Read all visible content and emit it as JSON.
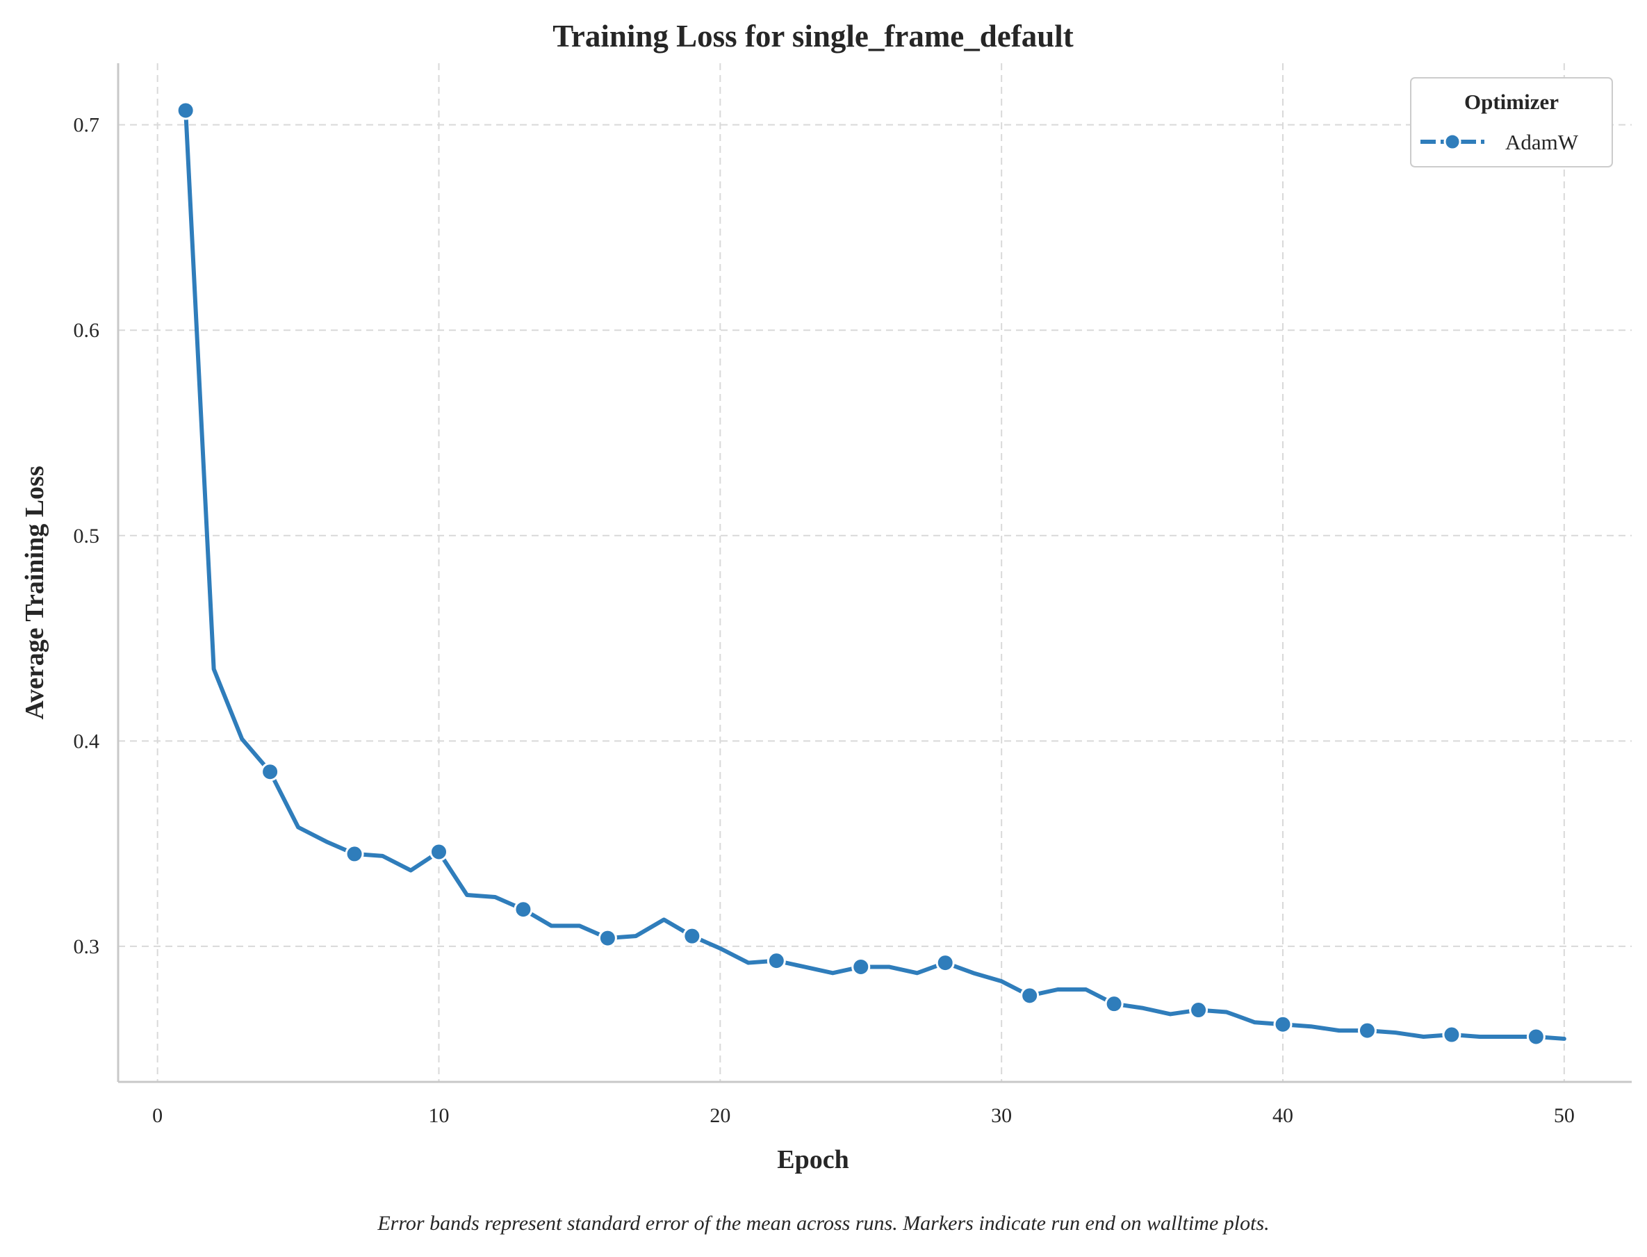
{
  "chart_data": {
    "type": "line",
    "title": "Training Loss for single_frame_default",
    "xlabel": "Epoch",
    "ylabel": "Average Training Loss",
    "caption": "Error bands represent standard error of the mean across runs. Markers indicate run end on walltime plots.",
    "xlim": [
      -1.4,
      52.4
    ],
    "ylim": [
      0.234,
      0.73
    ],
    "x_ticks": [
      0,
      10,
      20,
      30,
      40,
      50
    ],
    "x_tick_labels": [
      "0",
      "10",
      "20",
      "30",
      "40",
      "50"
    ],
    "y_ticks": [
      0.3,
      0.4,
      0.5,
      0.6,
      0.7
    ],
    "y_tick_labels": [
      "0.3",
      "0.4",
      "0.5",
      "0.6",
      "0.7"
    ],
    "grid": true,
    "grid_style": "dashed",
    "legend": {
      "title": "Optimizer",
      "placement": "top-right"
    },
    "colors": {
      "series": "#2f7dbb",
      "grid": "#d9d9d9",
      "spine": "#c8c8c8",
      "text": "#262626"
    },
    "series": [
      {
        "name": "AdamW",
        "marker_every": 3,
        "x": [
          1,
          2,
          3,
          4,
          5,
          6,
          7,
          8,
          9,
          10,
          11,
          12,
          13,
          14,
          15,
          16,
          17,
          18,
          19,
          20,
          21,
          22,
          23,
          24,
          25,
          26,
          27,
          28,
          29,
          30,
          31,
          32,
          33,
          34,
          35,
          36,
          37,
          38,
          39,
          40,
          41,
          42,
          43,
          44,
          45,
          46,
          47,
          48,
          49,
          50
        ],
        "values": [
          0.707,
          0.435,
          0.401,
          0.385,
          0.358,
          0.351,
          0.345,
          0.344,
          0.337,
          0.346,
          0.325,
          0.324,
          0.318,
          0.31,
          0.31,
          0.304,
          0.305,
          0.313,
          0.305,
          0.299,
          0.292,
          0.293,
          0.29,
          0.287,
          0.29,
          0.29,
          0.287,
          0.292,
          0.287,
          0.283,
          0.276,
          0.279,
          0.279,
          0.272,
          0.27,
          0.267,
          0.269,
          0.268,
          0.263,
          0.262,
          0.261,
          0.259,
          0.259,
          0.258,
          0.256,
          0.257,
          0.256,
          0.256,
          0.256,
          0.255
        ]
      }
    ]
  }
}
